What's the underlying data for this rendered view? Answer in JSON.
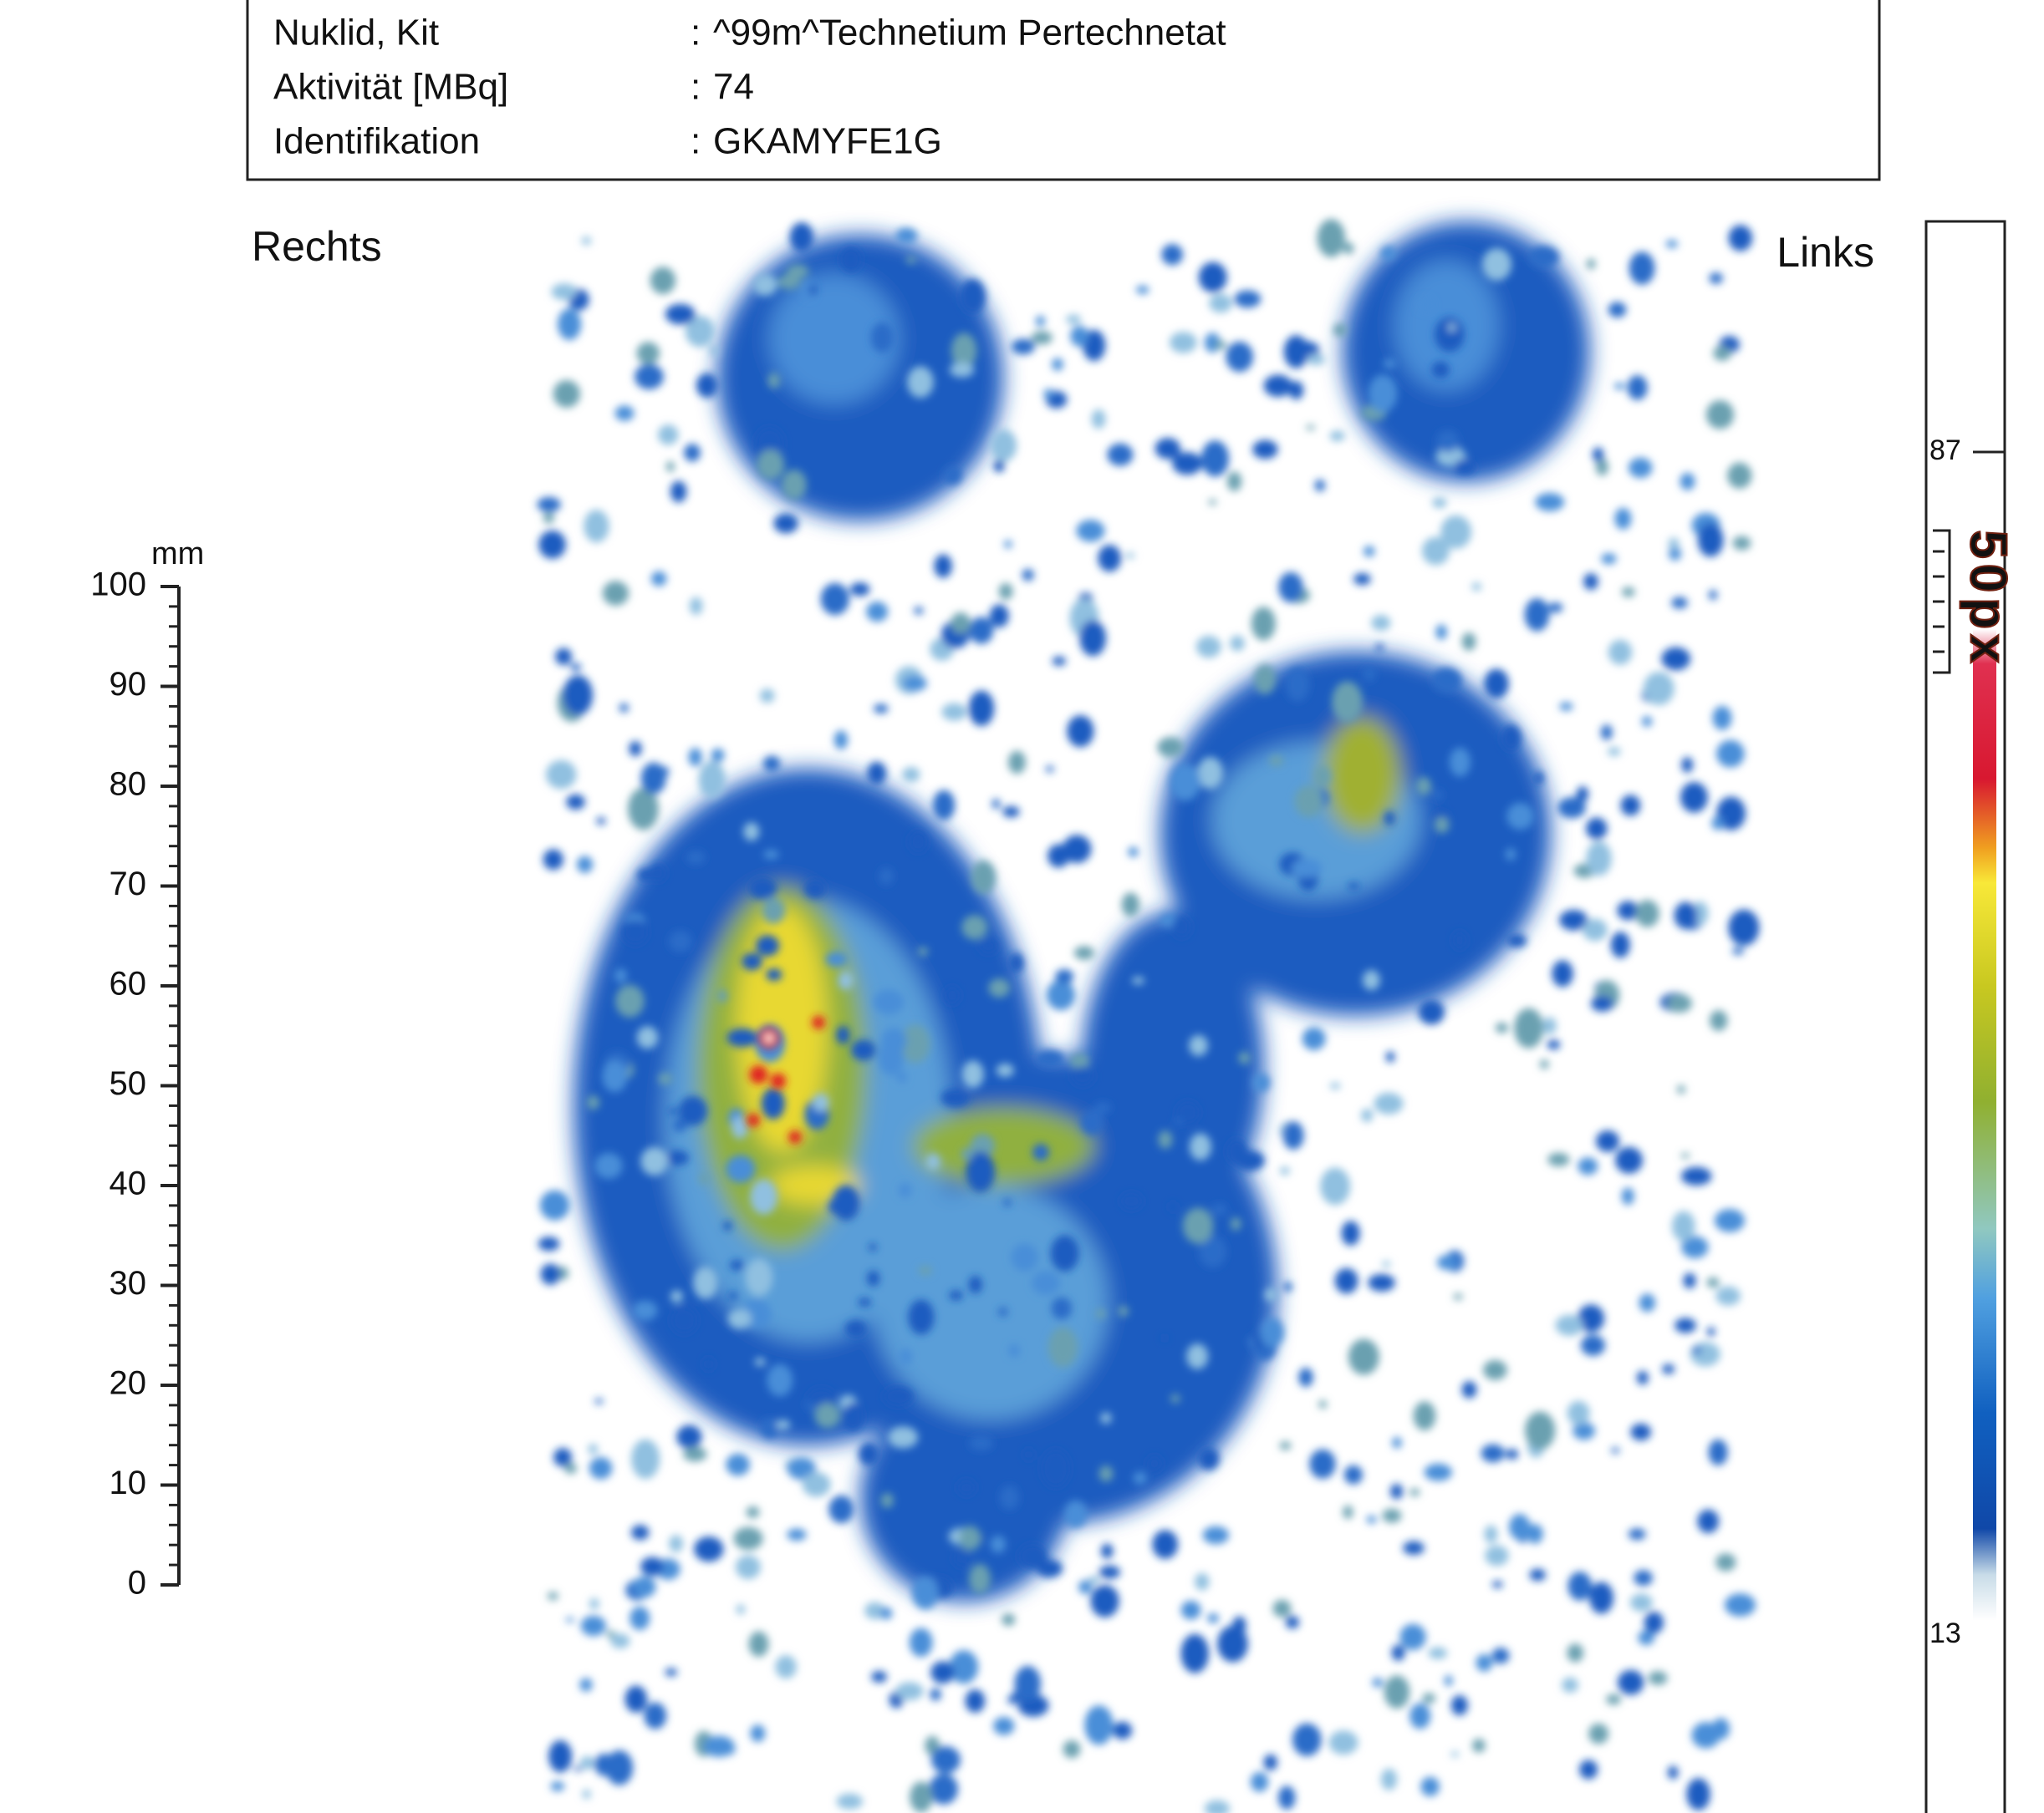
{
  "info": {
    "separator": ":",
    "rows": [
      {
        "label": "Nuklid, Kit",
        "value": "^99m^Technetium  Pertechnetat"
      },
      {
        "label": "Aktivität [MBq]",
        "value": "74"
      },
      {
        "label": "Identifikation",
        "value": "GKAMYFE1G"
      }
    ]
  },
  "orientation": {
    "right": "Rechts",
    "left": "Links"
  },
  "scale": {
    "unit": "mm",
    "range": [
      0,
      100
    ],
    "ticks": [
      0,
      10,
      20,
      30,
      40,
      50,
      60,
      70,
      80,
      90,
      100
    ]
  },
  "colorbar": {
    "max": 87,
    "min": 13,
    "label": "50px"
  }
}
